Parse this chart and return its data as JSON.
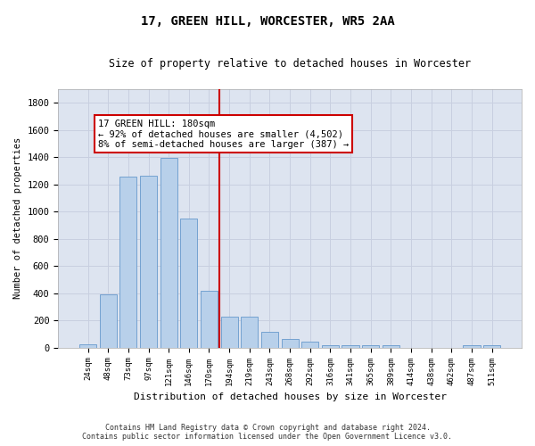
{
  "title": "17, GREEN HILL, WORCESTER, WR5 2AA",
  "subtitle": "Size of property relative to detached houses in Worcester",
  "xlabel": "Distribution of detached houses by size in Worcester",
  "ylabel": "Number of detached properties",
  "footer_line1": "Contains HM Land Registry data © Crown copyright and database right 2024.",
  "footer_line2": "Contains public sector information licensed under the Open Government Licence v3.0.",
  "categories": [
    "24sqm",
    "48sqm",
    "73sqm",
    "97sqm",
    "121sqm",
    "146sqm",
    "170sqm",
    "194sqm",
    "219sqm",
    "243sqm",
    "268sqm",
    "292sqm",
    "316sqm",
    "341sqm",
    "365sqm",
    "389sqm",
    "414sqm",
    "438sqm",
    "462sqm",
    "487sqm",
    "511sqm"
  ],
  "bar_values": [
    25,
    390,
    1260,
    1265,
    1395,
    950,
    415,
    230,
    230,
    115,
    62,
    42,
    18,
    18,
    18,
    18,
    0,
    0,
    0,
    15,
    15
  ],
  "bar_color": "#b8d0ea",
  "bar_edge_color": "#6699cc",
  "grid_color": "#c8cfe0",
  "background_color": "#dde4f0",
  "vline_color": "#cc0000",
  "annotation_text": "17 GREEN HILL: 180sqm\n← 92% of detached houses are smaller (4,502)\n8% of semi-detached houses are larger (387) →",
  "annotation_box_color": "#ffffff",
  "annotation_box_edge": "#cc0000",
  "ylim": [
    0,
    1900
  ],
  "yticks": [
    0,
    200,
    400,
    600,
    800,
    1000,
    1200,
    1400,
    1600,
    1800
  ]
}
